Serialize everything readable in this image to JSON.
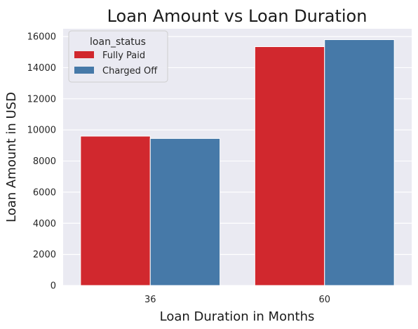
{
  "chart_data": {
    "type": "bar",
    "title": "Loan Amount vs Loan Duration",
    "xlabel": "Loan Duration in Months",
    "ylabel": "Loan Amount in USD",
    "categories": [
      "36",
      "60"
    ],
    "series": [
      {
        "name": "Fully Paid",
        "values": [
          9600,
          15350
        ],
        "color": "#d1282e"
      },
      {
        "name": "Charged Off",
        "values": [
          9450,
          15800
        ],
        "color": "#4679a8"
      }
    ],
    "ylim": [
      0,
      16500
    ],
    "yticks": [
      0,
      2000,
      4000,
      6000,
      8000,
      10000,
      12000,
      14000,
      16000
    ],
    "grid": true,
    "legend": {
      "title": "loan_status",
      "placement": "top-left"
    },
    "colors": {
      "plot_background": "#eaeaf2",
      "grid": "#ffffff"
    }
  }
}
